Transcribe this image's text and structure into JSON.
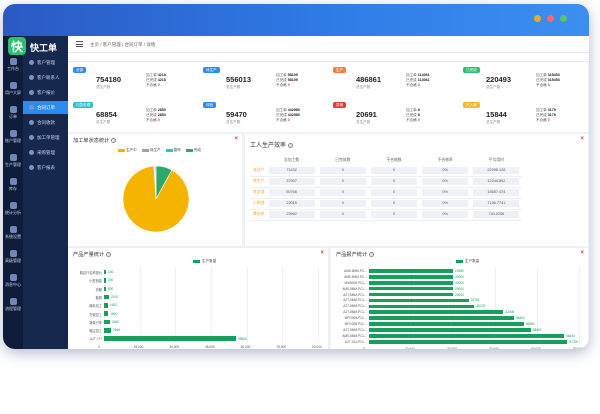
{
  "app": {
    "brand": "快工单",
    "logo_char": "快"
  },
  "window_dots": [
    "#f5a623",
    "#f06d6d",
    "#5cc26d"
  ],
  "sidebar_items": [
    "工作台",
    "用户大屏",
    "订单",
    "账户管理",
    "生产管理",
    "库存",
    "统计分析",
    "系统设置",
    "高级管理",
    "消息中心",
    "流程管理"
  ],
  "nav_items": [
    "客户管理",
    "客户联系人",
    "客户报价",
    "合同订单",
    "合同收款",
    "加工单管理",
    "采购管理",
    "客户报表"
  ],
  "nav_active": 3,
  "breadcrumb": [
    "主页",
    "客户管理",
    "合同订单",
    "详情"
  ],
  "stats": [
    {
      "badge": "全部",
      "color": "#2a8cf0",
      "value": "754180",
      "sub": "总生产数",
      "l1": "加工单",
      "v1": "4218",
      "l2": "已完成",
      "v2": "4218",
      "l3": "不合格",
      "v3": "0"
    },
    {
      "badge": "待生产",
      "color": "#2a8cf0",
      "value": "556013",
      "sub": "总生产数",
      "l1": "加工单",
      "v1": "58109",
      "l2": "已完成",
      "v2": "58109",
      "l3": "不合格",
      "v3": "0"
    },
    {
      "badge": "生产",
      "color": "#f57c45",
      "value": "486861",
      "sub": "总生产数",
      "l1": "加工单",
      "v1": "114061",
      "l2": "已完成",
      "v2": "114061",
      "l3": "不合格",
      "v3": "0"
    },
    {
      "badge": "已完成",
      "color": "#2fbf71",
      "value": "220493",
      "sub": "总生产数",
      "l1": "加工单",
      "v1": "315453",
      "l2": "已完成",
      "v2": "315453",
      "l3": "不合格",
      "v3": "0"
    },
    {
      "badge": "加急处理",
      "color": "#2fbfd0",
      "value": "68854",
      "sub": "总生产数",
      "l1": "加工单",
      "v1": "2853",
      "l2": "已完成",
      "v2": "2853",
      "l3": "不合格",
      "v3": "0"
    },
    {
      "badge": "待检",
      "color": "#2a8cf0",
      "value": "59470",
      "sub": "总生产数",
      "l1": "加工单",
      "v1": "442980",
      "l2": "已完成",
      "v2": "442980",
      "l3": "不合格",
      "v3": "0"
    },
    {
      "badge": "异常",
      "color": "#e23b3b",
      "value": "20691",
      "sub": "总生产数",
      "l1": "加工单",
      "v1": "8",
      "l2": "已完成",
      "v2": "8",
      "l3": "不合格",
      "v3": "0"
    },
    {
      "badge": "已入库",
      "color": "#f5b72b",
      "value": "15844",
      "sub": "总生产数",
      "l1": "加工单",
      "v1": "3179",
      "l2": "已完成",
      "v2": "3179",
      "l3": "不合格",
      "v3": "0"
    }
  ],
  "panels": {
    "status_title": "加工单状态统计",
    "efficiency_title": "工人生产效率",
    "qty_title": "产品产量统计",
    "rank_title": "产品报产统计"
  },
  "efficiency": {
    "headers": [
      "",
      "总加工数",
      "已完成数",
      "不合格数",
      "不合格率",
      "平均用时"
    ],
    "rows": [
      {
        "name": "张总产",
        "c1": "71432",
        "c2": "0",
        "c3": "0",
        "c4": "0%",
        "c5": "22998.128"
      },
      {
        "name": "李生产",
        "c1": "37907",
        "c2": "0",
        "c3": "0",
        "c4": "0%",
        "c5": "12244.892"
      },
      {
        "name": "李总部",
        "c1": "50768",
        "c2": "0",
        "c3": "0",
        "c4": "0%",
        "c5": "16657.474"
      },
      {
        "name": "小明部",
        "c1": "22019",
        "c2": "0",
        "c3": "0",
        "c4": "0%",
        "c5": "7196.7741"
      },
      {
        "name": "覃总参",
        "c1": "23962",
        "c2": "0",
        "c3": "0",
        "c4": "0%",
        "c5": "743.0256"
      }
    ]
  },
  "chart_data": [
    {
      "type": "pie",
      "legend": [
        "生产中",
        "待生产",
        "暂停",
        "完成"
      ],
      "colors": [
        "#f5b400",
        "#9aa3b5",
        "#2fbfd0",
        "#2ea86a"
      ],
      "values": [
        91,
        0.5,
        0.5,
        8
      ]
    },
    {
      "type": "bar",
      "orientation": "horizontal",
      "legend": "生产数量",
      "categories": [
        "鞋店行名称报价",
        "小型西装",
        "衣服",
        "鞋帽",
        "裤料加工",
        "方便加工",
        "新款行李",
        "鞋店加工",
        "A2T-???"
      ],
      "values": [
        130,
        200,
        800,
        2100,
        1600,
        1800,
        2460,
        2960,
        55500
      ],
      "xlim": [
        0,
        90000
      ],
      "xticks": [
        "0",
        "15,000",
        "30,000",
        "45,000",
        "60,000",
        "75,000",
        "90,000"
      ]
    },
    {
      "type": "bar",
      "orientation": "horizontal",
      "legend": "生产数量",
      "categories": [
        "AM5-5MM-PC...",
        "AM5-5MM-PC...",
        "MN560H-PCL...",
        "AM5-5MM-PCL...",
        "A2T-5MM-PCL...",
        "A2T-5MM-PCL...",
        "A2T-5MM-PCL...",
        "A2T-5MM-PCL...",
        "MFG008-PCL...",
        "MFG008-PCL...",
        "A2T-5MM-PCL...",
        "AM5-5MM-PCL...",
        "A2T-014-PCL..."
      ],
      "values": [
        19980,
        20000,
        20000,
        20000,
        20000,
        23761,
        25100,
        32000,
        34500,
        36850,
        38500,
        46440,
        47220
      ],
      "xlim": [
        0,
        50000
      ],
      "xticks": [
        "0",
        "10,000",
        "20,000",
        "30,000",
        "40,000",
        "50,000"
      ]
    }
  ]
}
